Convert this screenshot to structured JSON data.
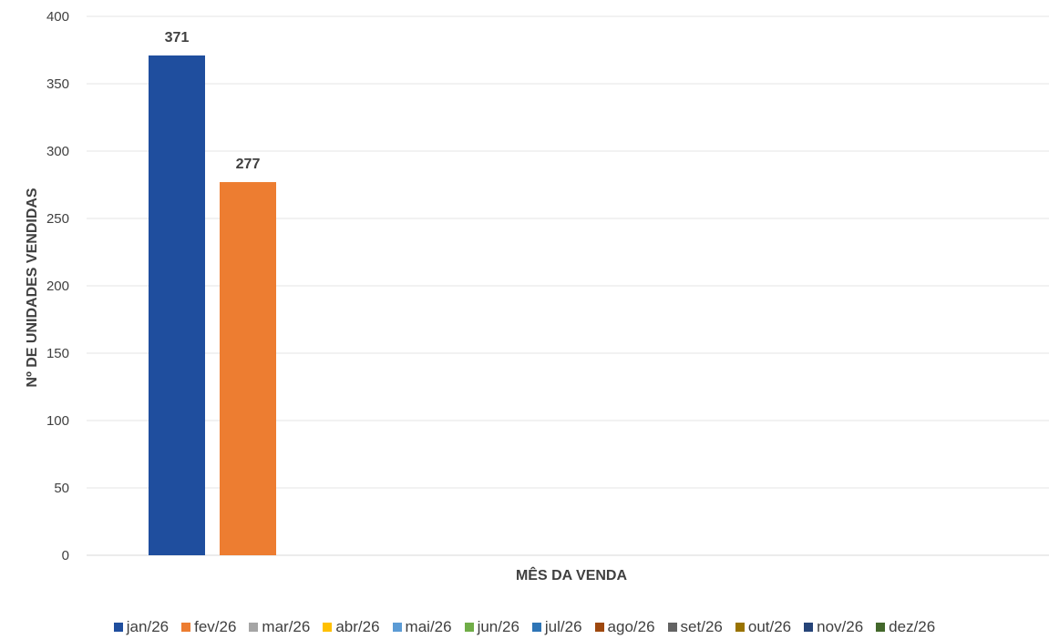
{
  "chart_data": {
    "type": "bar",
    "xlabel": "MÊS DA VENDA",
    "ylabel": "Nº DE UNIDADES VENDIDAS",
    "ylim": [
      0,
      400
    ],
    "yticks": [
      0,
      50,
      100,
      150,
      200,
      250,
      300,
      350,
      400
    ],
    "grid": true,
    "legend_position": "bottom",
    "series": [
      {
        "name": "jan/26",
        "value": 371,
        "color": "#1f4e9e"
      },
      {
        "name": "fev/26",
        "value": 277,
        "color": "#ed7d31"
      },
      {
        "name": "mar/26",
        "value": null,
        "color": "#a5a5a5"
      },
      {
        "name": "abr/26",
        "value": null,
        "color": "#ffc000"
      },
      {
        "name": "mai/26",
        "value": null,
        "color": "#5b9bd5"
      },
      {
        "name": "jun/26",
        "value": null,
        "color": "#70ad47"
      },
      {
        "name": "jul/26",
        "value": null,
        "color": "#2e75b6"
      },
      {
        "name": "ago/26",
        "value": null,
        "color": "#9e480e"
      },
      {
        "name": "set/26",
        "value": null,
        "color": "#636363"
      },
      {
        "name": "out/26",
        "value": null,
        "color": "#997300"
      },
      {
        "name": "nov/26",
        "value": null,
        "color": "#264478"
      },
      {
        "name": "dez/26",
        "value": null,
        "color": "#43682b"
      }
    ]
  }
}
